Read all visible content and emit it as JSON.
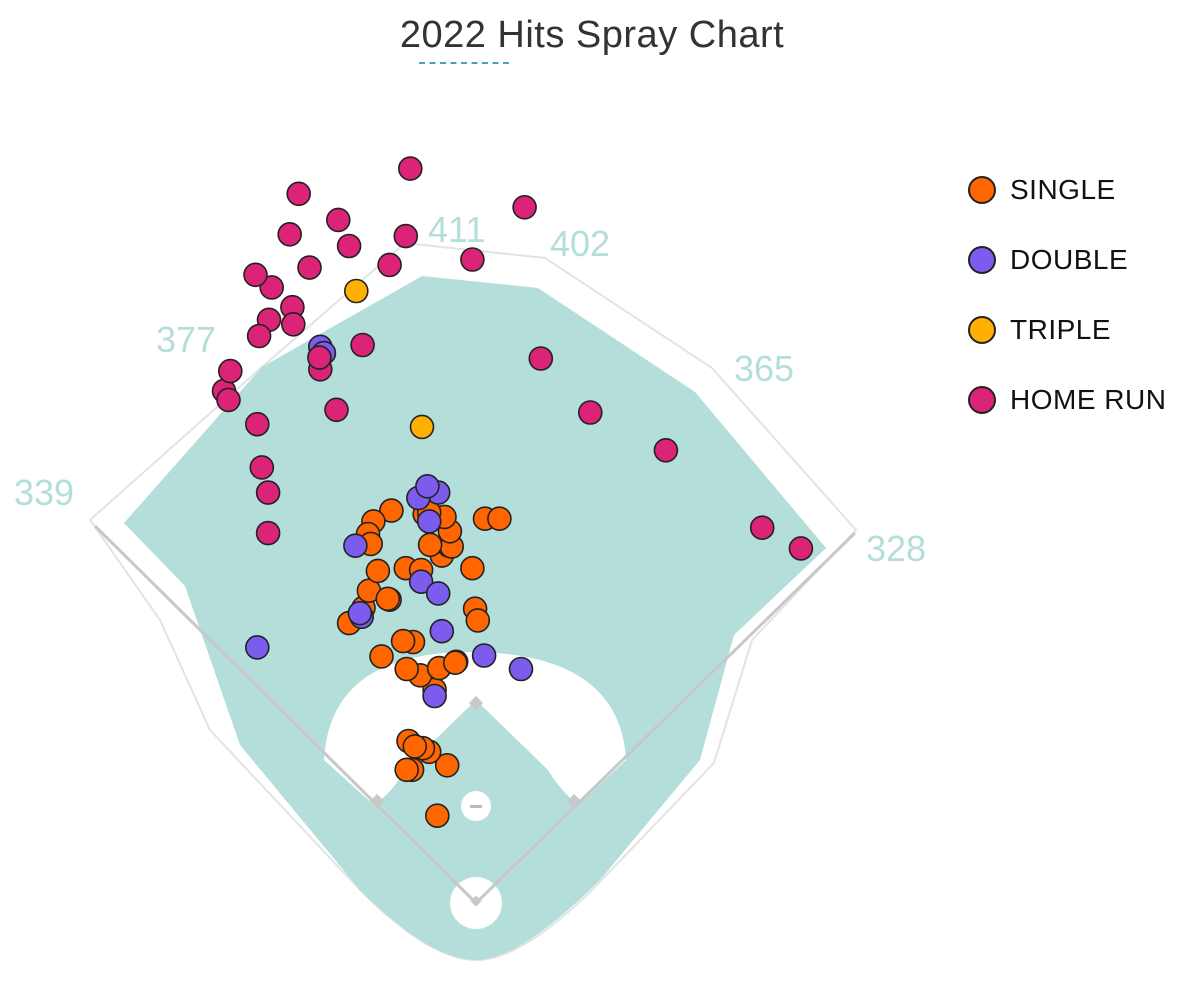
{
  "chart_data": {
    "type": "scatter",
    "title": "2022 Hits Spray Chart",
    "distance_markers": [
      "339",
      "377",
      "411",
      "402",
      "365",
      "328"
    ],
    "colors": {
      "field_grass": "#b3deda",
      "infield_dirt": "#ffffff",
      "wall_line": "#e3e3e3",
      "foul_line": "#c8c8c8"
    },
    "legend_position": "top-right",
    "series": [
      {
        "name": "SINGLE",
        "color": "#ff6600",
        "points": [
          [
            -0.43,
            0.97
          ],
          [
            -0.32,
            1.53
          ],
          [
            -0.75,
            1.8
          ],
          [
            -0.71,
            1.48
          ],
          [
            -0.52,
            1.68
          ],
          [
            -0.59,
            1.72
          ],
          [
            -0.68,
            1.74
          ],
          [
            -0.77,
            1.48
          ],
          [
            -0.46,
            2.37
          ],
          [
            -0.62,
            2.53
          ],
          [
            -0.77,
            2.6
          ],
          [
            -0.41,
            2.61
          ],
          [
            -0.22,
            2.68
          ],
          [
            -0.23,
            2.67
          ],
          [
            -0.7,
            2.9
          ],
          [
            -1.05,
            2.74
          ],
          [
            -0.81,
            2.91
          ],
          [
            -1.41,
            3.11
          ],
          [
            -1.25,
            3.28
          ],
          [
            -0.96,
            3.37
          ],
          [
            -1.19,
            3.47
          ],
          [
            -0.78,
            3.72
          ],
          [
            -0.38,
            3.86
          ],
          [
            -0.04,
            3.72
          ],
          [
            -0.3,
            3.97
          ],
          [
            -0.27,
            3.96
          ],
          [
            -0.29,
            4.13
          ],
          [
            -0.35,
            4.29
          ],
          [
            -0.57,
            4.32
          ],
          [
            -0.52,
            4.34
          ],
          [
            0.1,
            4.27
          ],
          [
            0.26,
            4.27
          ],
          [
            -0.94,
            4.36
          ],
          [
            -1.14,
            4.24
          ],
          [
            -1.2,
            4.1
          ],
          [
            -1.17,
            3.99
          ],
          [
            -1.09,
            3.69
          ],
          [
            -0.61,
            3.7
          ],
          [
            -0.51,
            3.98
          ],
          [
            -0.98,
            3.38
          ],
          [
            -0.01,
            3.27
          ],
          [
            0.02,
            3.14
          ]
        ]
      },
      {
        "name": "DOUBLE",
        "color": "#7b5ced",
        "points": [
          [
            -0.46,
            2.3
          ],
          [
            0.09,
            2.75
          ],
          [
            0.5,
            2.6
          ],
          [
            -0.38,
            3.02
          ],
          [
            -1.27,
            3.18
          ],
          [
            -2.43,
            2.84
          ],
          [
            -0.61,
            3.57
          ],
          [
            -0.42,
            3.44
          ],
          [
            -0.42,
            4.56
          ],
          [
            -1.73,
            6.18
          ],
          [
            -1.69,
            6.11
          ],
          [
            -0.64,
            4.5
          ],
          [
            -0.54,
            4.63
          ],
          [
            -1.34,
            3.97
          ],
          [
            -1.29,
            3.22
          ],
          [
            -0.52,
            4.24
          ]
        ]
      },
      {
        "name": "TRIPLE",
        "color": "#ffb000",
        "points": [
          [
            -0.6,
            5.29
          ],
          [
            -1.33,
            6.8
          ]
        ]
      },
      {
        "name": "HOME RUN",
        "color": "#db2377",
        "points": [
          [
            -2.3,
            6.48
          ],
          [
            -2.41,
            6.3
          ],
          [
            -2.27,
            6.84
          ],
          [
            -2.45,
            6.98
          ],
          [
            -2.43,
            5.32
          ],
          [
            -2.38,
            4.84
          ],
          [
            -1.55,
            5.48
          ],
          [
            -1.26,
            6.2
          ],
          [
            -0.78,
            7.41
          ],
          [
            -0.04,
            7.15
          ],
          [
            0.72,
            6.05
          ],
          [
            1.27,
            5.45
          ],
          [
            2.11,
            5.03
          ],
          [
            3.18,
            4.17
          ],
          [
            3.61,
            3.94
          ],
          [
            -2.8,
            5.69
          ],
          [
            -2.75,
            5.59
          ],
          [
            -2.73,
            5.91
          ],
          [
            -1.73,
            5.93
          ],
          [
            -1.74,
            6.06
          ],
          [
            -1.41,
            7.3
          ],
          [
            -0.96,
            7.09
          ],
          [
            -1.53,
            7.59
          ],
          [
            -2.07,
            7.43
          ],
          [
            -1.85,
            7.06
          ],
          [
            -2.04,
            6.62
          ],
          [
            -2.03,
            6.43
          ],
          [
            -1.97,
            7.88
          ],
          [
            -0.73,
            8.16
          ],
          [
            0.54,
            7.73
          ],
          [
            -2.31,
            4.56
          ],
          [
            -2.31,
            4.11
          ]
        ]
      }
    ]
  }
}
